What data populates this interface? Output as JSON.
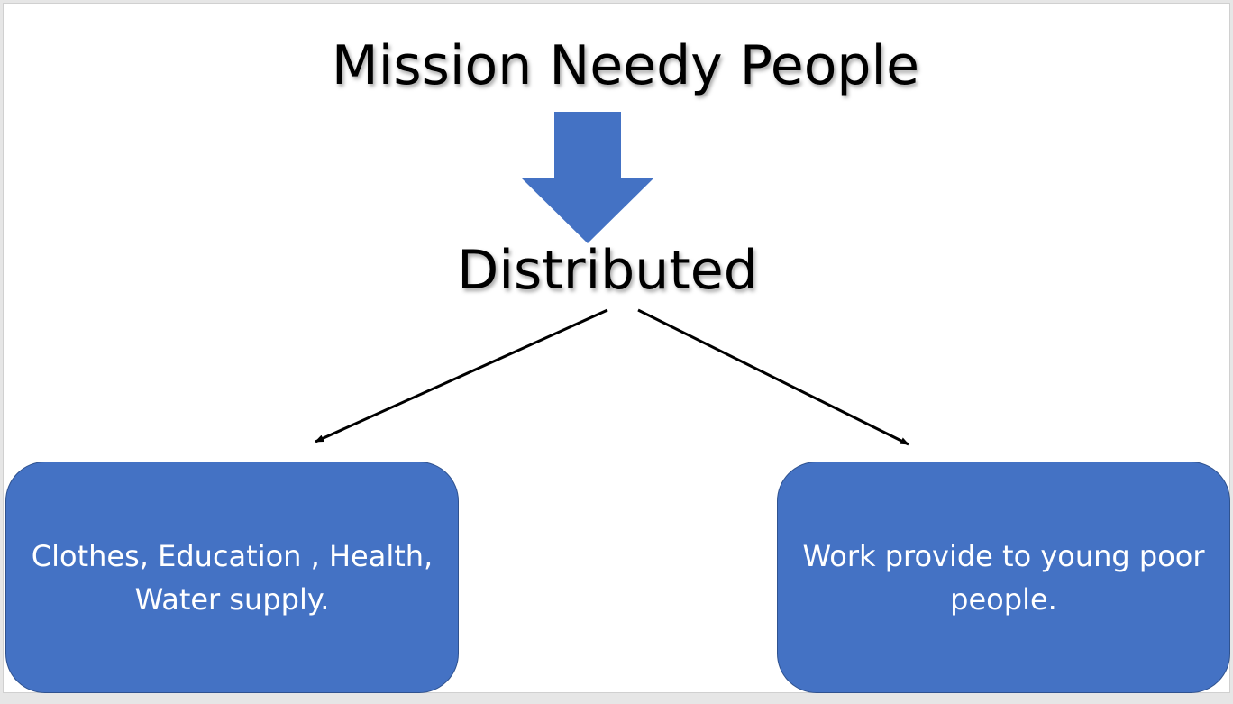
{
  "diagram": {
    "title": "Mission Needy People",
    "subtitle": "Distributed",
    "boxes": {
      "left": "Clothes, Education , Health, Water supply.",
      "right": "Work provide to young poor people."
    },
    "colors": {
      "box_fill": "#4472c4",
      "box_border": "#2f528f",
      "arrow_fill": "#4472c4",
      "connector": "#000000",
      "text_dark": "#000000",
      "text_light": "#ffffff"
    }
  }
}
